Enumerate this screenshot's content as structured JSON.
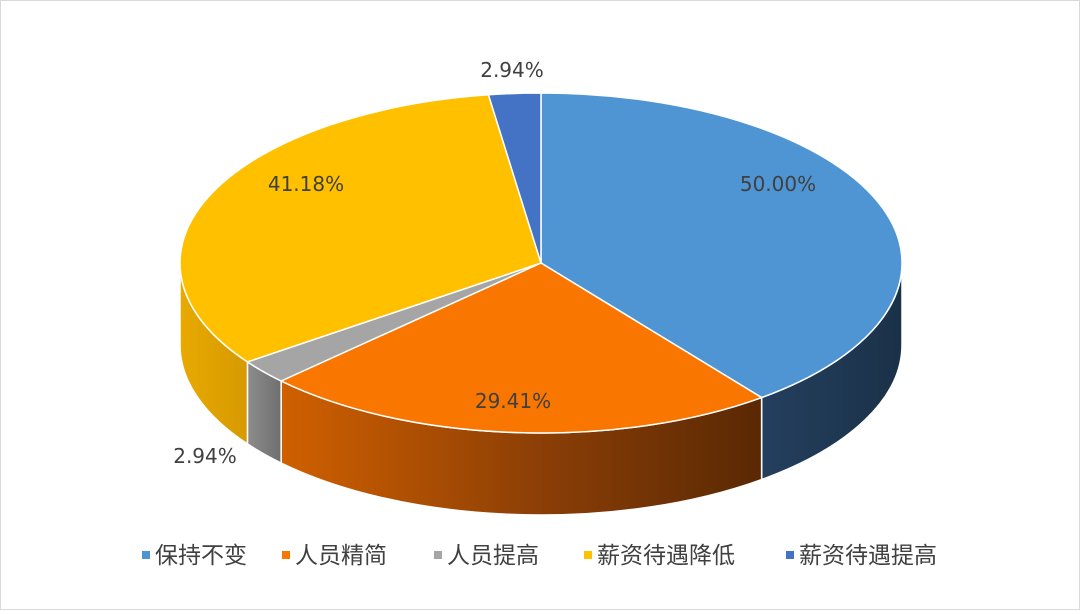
{
  "chart_data": {
    "type": "pie",
    "style": "3d",
    "title": "",
    "series": [
      {
        "values": [
          50.0,
          29.41,
          2.94,
          41.18,
          2.94
        ],
        "unit": "%"
      }
    ],
    "categories": [
      "保持不变",
      "人员精简",
      "人员提高",
      "薪资待遇降低",
      "薪资待遇提高"
    ],
    "data_labels": [
      "50.00%",
      "29.41%",
      "2.94%",
      "41.18%",
      "2.94%"
    ],
    "colors": [
      "#4f95d4",
      "#f97600",
      "#a5a5a5",
      "#ffc000",
      "#4472c4"
    ],
    "side_colors": [
      "#1f3a55",
      "#c25c00",
      "#7b7b7b",
      "#e2a800",
      "#2a4a8a"
    ],
    "legend_position": "bottom",
    "grid": false
  }
}
